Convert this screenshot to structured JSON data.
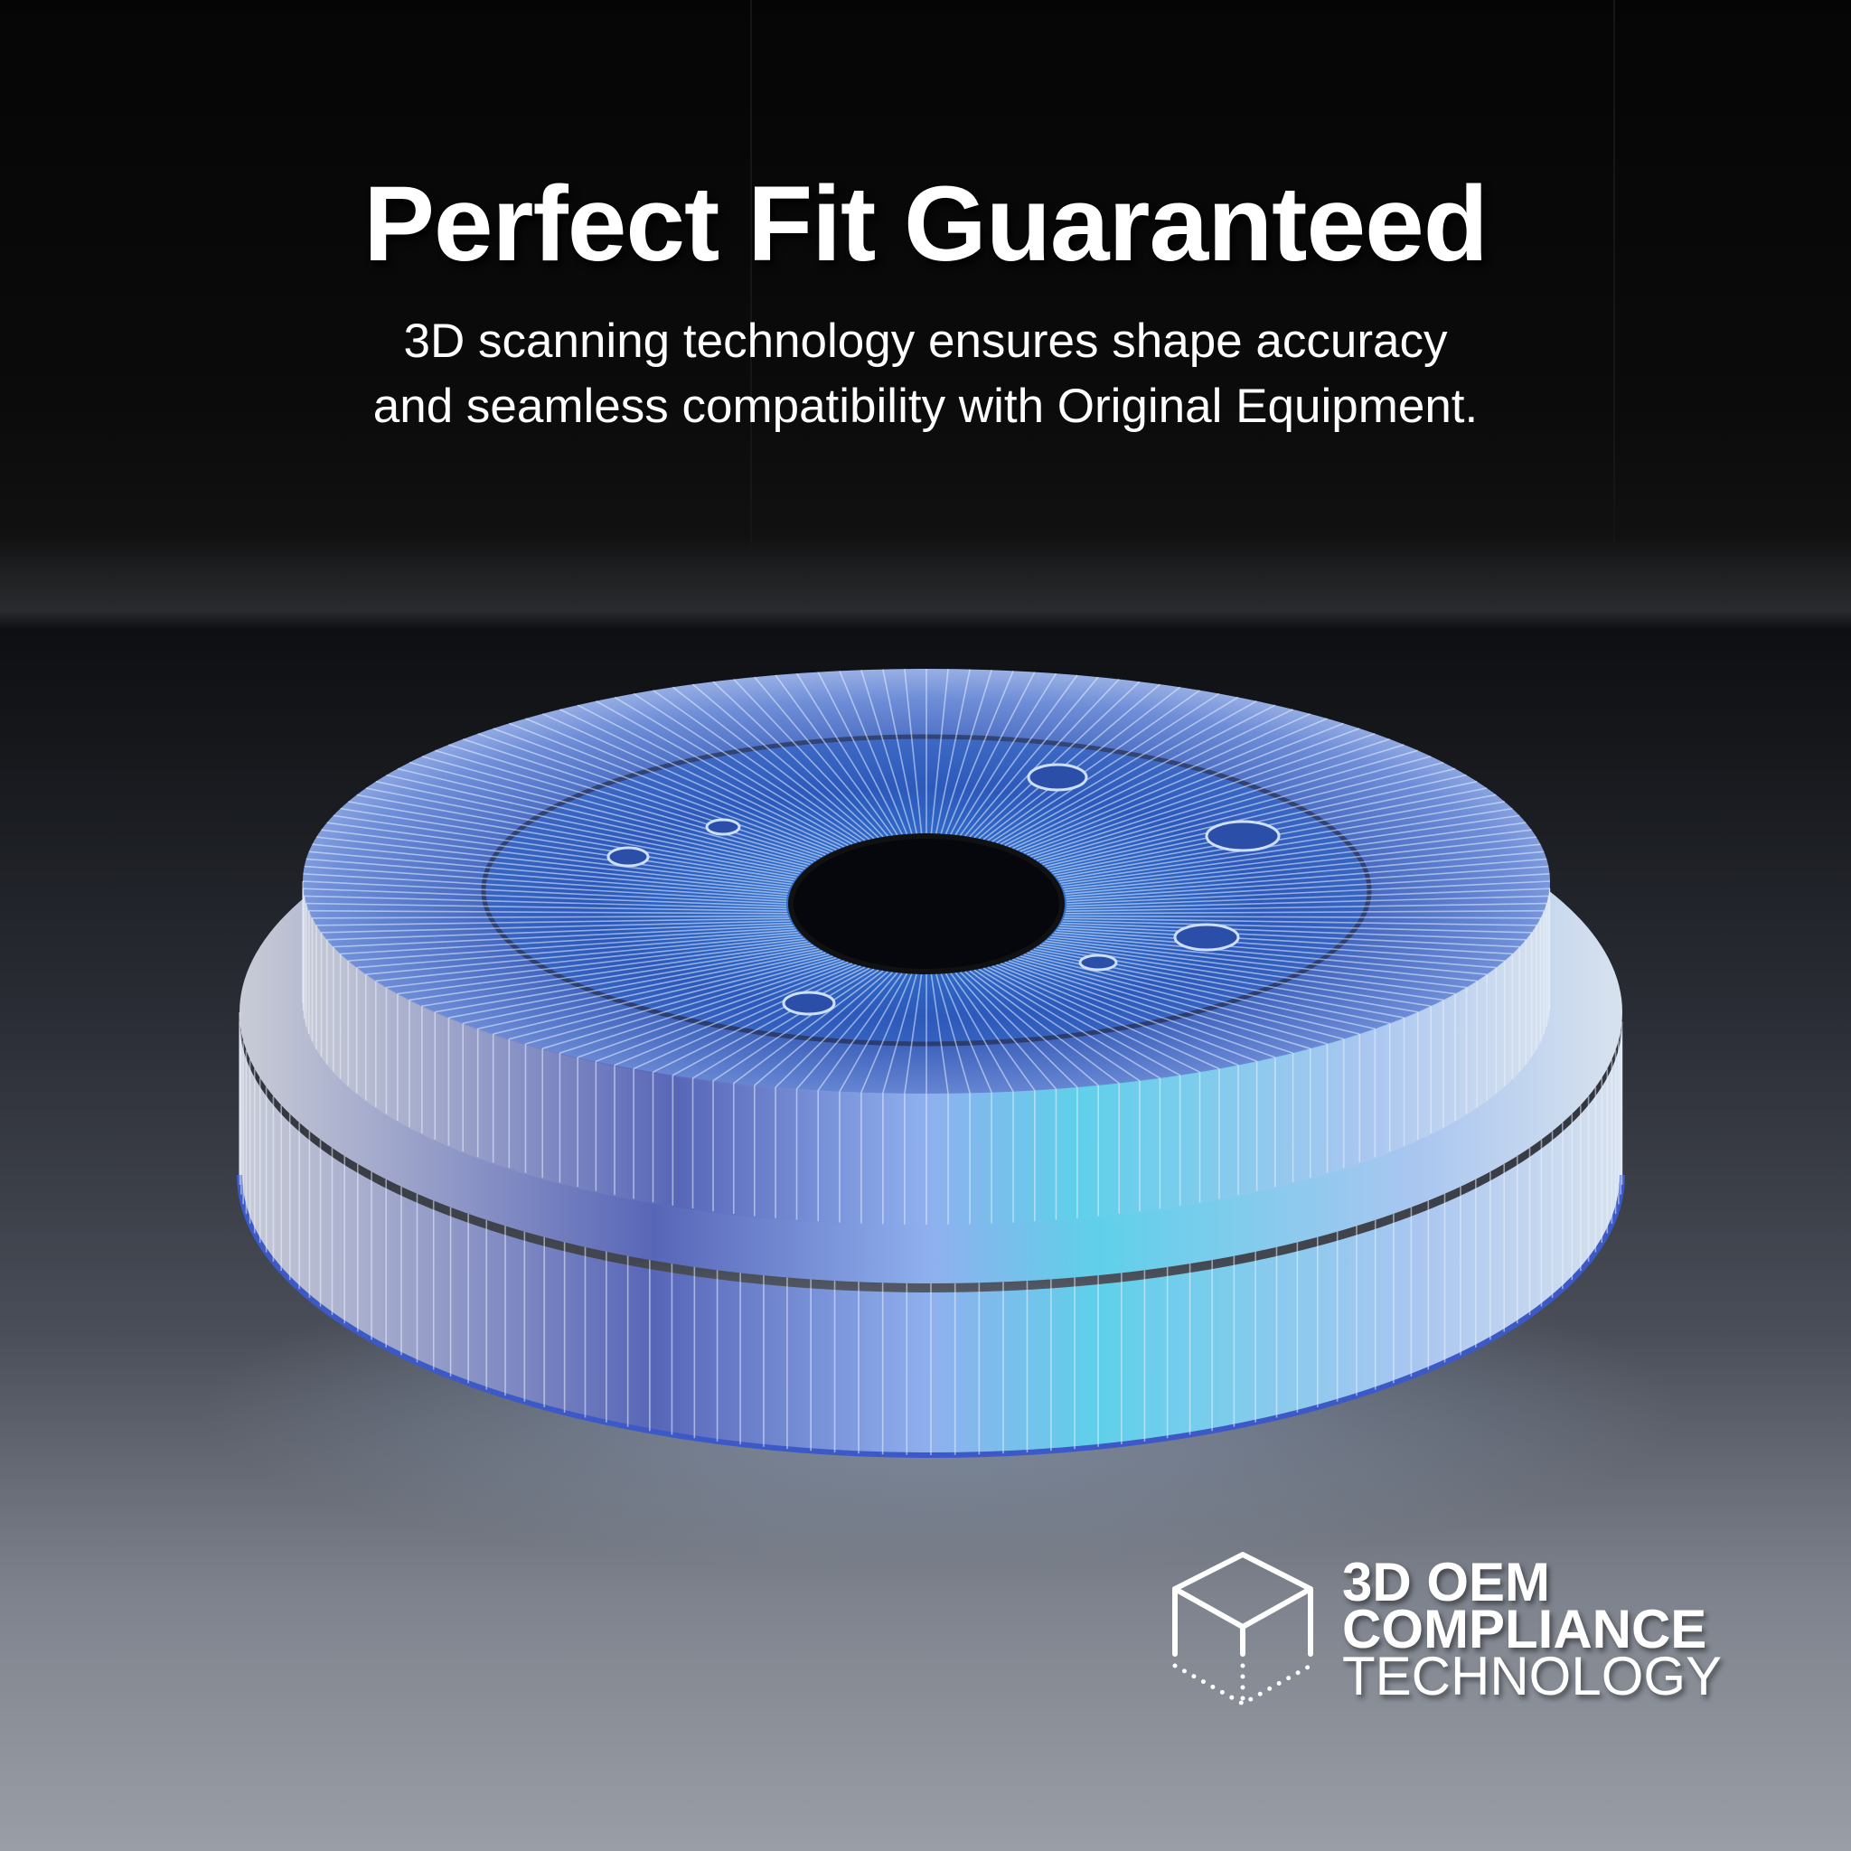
{
  "headline": "Perfect Fit Guaranteed",
  "subheadline": {
    "line1": "3D scanning technology ensures shape accuracy",
    "line2": "and seamless compatibility with Original Equipment."
  },
  "badge": {
    "icon": "wireframe-cube-icon",
    "line1": "3D OEM",
    "line2": "COMPLIANCE",
    "line3": "TECHNOLOGY"
  },
  "colors": {
    "background_top": "#050505",
    "floor": "#7d828c",
    "wireframe_accent": "#4fa8ff",
    "text": "#ffffff"
  }
}
